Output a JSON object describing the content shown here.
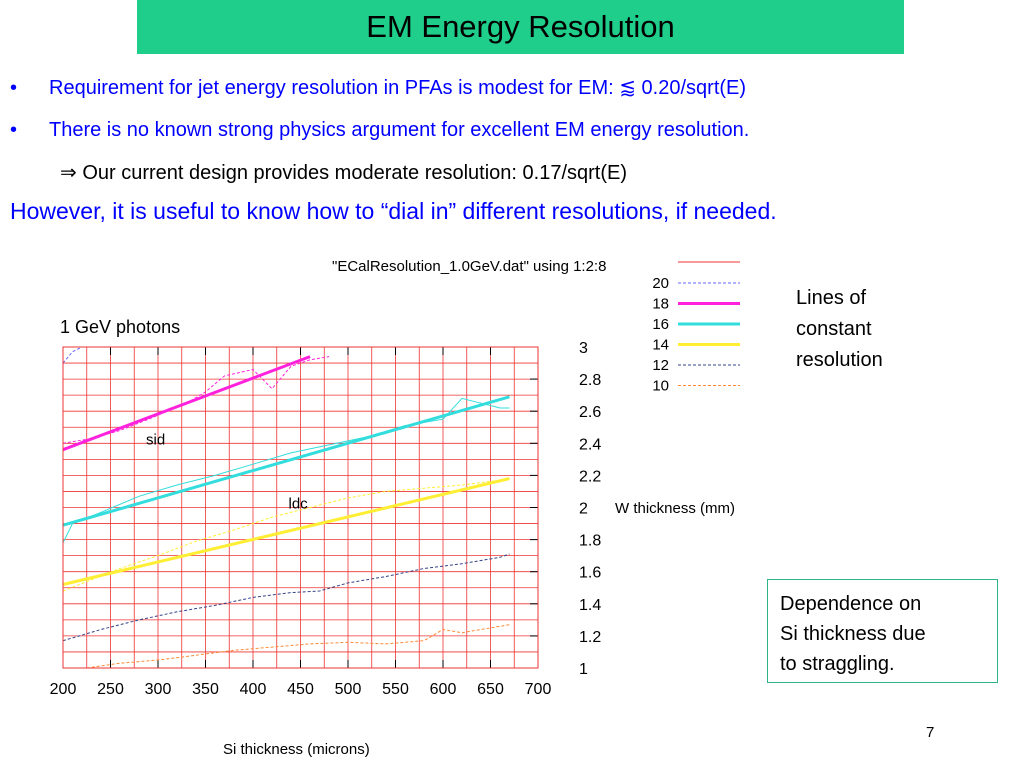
{
  "slide": {
    "title": "EM Energy Resolution",
    "bullet_char": "•",
    "bullet1": "Requirement for jet energy resolution in PFAs is modest for EM:  ⪅ 0.20/sqrt(E)",
    "bullet2": "There is no known strong physics argument for excellent EM energy resolution.",
    "arrow_line": "⇒ Our current design provides moderate resolution:  0.17/sqrt(E)",
    "however": "However, it is useful to know how to “dial in” different resolutions, if needed.",
    "side_note": [
      "Lines of",
      "constant",
      "resolution"
    ],
    "dependence_box": [
      "Dependence on",
      "Si thickness due",
      "to straggling."
    ],
    "page_number": "7",
    "colors": {
      "title_bg": "#1fce8a",
      "bullet_text": "#0000ff",
      "grid": "#ee3333"
    }
  },
  "chart_data": {
    "type": "line",
    "title": "\"ECalResolution_1.0GeV.dat\" using 1:2:8",
    "annotation": "1 GeV photons",
    "xlabel": "Si thickness (microns)",
    "ylabel": "W thickness (mm)",
    "xlim": [
      200,
      700
    ],
    "ylim": [
      1,
      3
    ],
    "x_ticks": [
      "200",
      "250",
      "300",
      "350",
      "400",
      "450",
      "500",
      "550",
      "600",
      "650",
      "700"
    ],
    "y_ticks": [
      "1",
      "1.2",
      "1.4",
      "1.6",
      "1.8",
      "2",
      "2.2",
      "2.4",
      "2.6",
      "2.8",
      "3"
    ],
    "grid": true,
    "legend_position": "top-right",
    "point_labels": [
      {
        "text": "sid",
        "x": 300,
        "y": 2.48
      },
      {
        "text": "ldc",
        "x": 450,
        "y": 2.08
      }
    ],
    "series": [
      {
        "name": "20",
        "color": "#6666ff",
        "style": "dashed",
        "width": 1,
        "x": [
          200,
          210,
          220
        ],
        "y": [
          2.9,
          2.97,
          3.0
        ]
      },
      {
        "name": "18",
        "color": "#ff22dd",
        "style": "dashed",
        "width": 1,
        "x": [
          200,
          230,
          260,
          290,
          310,
          330,
          350,
          370,
          400,
          420,
          440,
          460,
          480
        ],
        "y": [
          2.4,
          2.43,
          2.48,
          2.55,
          2.6,
          2.65,
          2.72,
          2.82,
          2.86,
          2.74,
          2.88,
          2.92,
          2.94
        ]
      },
      {
        "name": "18",
        "color": "#ff22dd",
        "style": "solid",
        "width": 3,
        "x": [
          200,
          460
        ],
        "y": [
          2.36,
          2.94
        ]
      },
      {
        "name": "16",
        "color": "#33dddd",
        "style": "thin",
        "width": 1,
        "x": [
          200,
          210,
          240,
          280,
          320,
          360,
          400,
          440,
          480,
          520,
          560,
          600,
          620,
          640,
          660,
          670
        ],
        "y": [
          1.78,
          1.9,
          1.97,
          2.07,
          2.14,
          2.2,
          2.27,
          2.34,
          2.39,
          2.44,
          2.51,
          2.55,
          2.68,
          2.65,
          2.62,
          2.62
        ]
      },
      {
        "name": "16",
        "color": "#33dddd",
        "style": "solid",
        "width": 3,
        "x": [
          200,
          670
        ],
        "y": [
          1.89,
          2.69
        ]
      },
      {
        "name": "14",
        "color": "#ffee33",
        "style": "dashed",
        "width": 1,
        "x": [
          200,
          230,
          260,
          300,
          340,
          380,
          420,
          460,
          500,
          540,
          580,
          620,
          660,
          670
        ],
        "y": [
          1.48,
          1.55,
          1.62,
          1.7,
          1.79,
          1.86,
          1.94,
          2.0,
          2.06,
          2.1,
          2.12,
          2.14,
          2.17,
          2.18
        ]
      },
      {
        "name": "14",
        "color": "#ffee33",
        "style": "solid",
        "width": 3,
        "x": [
          200,
          670
        ],
        "y": [
          1.52,
          2.18
        ]
      },
      {
        "name": "12",
        "color": "#334488",
        "style": "dashed",
        "width": 1,
        "x": [
          200,
          240,
          280,
          320,
          360,
          400,
          440,
          470,
          500,
          540,
          580,
          620,
          660,
          670
        ],
        "y": [
          1.17,
          1.24,
          1.3,
          1.35,
          1.39,
          1.44,
          1.47,
          1.48,
          1.53,
          1.57,
          1.62,
          1.65,
          1.69,
          1.71
        ]
      },
      {
        "name": "10",
        "color": "#ff8833",
        "style": "dashed",
        "width": 1,
        "x": [
          225,
          260,
          300,
          340,
          380,
          420,
          460,
          500,
          540,
          580,
          600,
          620,
          650,
          670
        ],
        "y": [
          1.0,
          1.03,
          1.05,
          1.08,
          1.11,
          1.13,
          1.15,
          1.16,
          1.15,
          1.17,
          1.24,
          1.22,
          1.25,
          1.27
        ]
      }
    ],
    "legend": [
      {
        "label": "20",
        "color": "#6666ff",
        "style": "dashed",
        "width": 1
      },
      {
        "label": "18",
        "color": "#ff22dd",
        "style": "solid",
        "width": 3
      },
      {
        "label": "16",
        "color": "#33dddd",
        "style": "solid",
        "width": 3
      },
      {
        "label": "14",
        "color": "#ffee33",
        "style": "solid",
        "width": 3
      },
      {
        "label": "12",
        "color": "#334488",
        "style": "dashed",
        "width": 1
      },
      {
        "label": "10",
        "color": "#ff8833",
        "style": "dashed",
        "width": 1
      }
    ]
  }
}
